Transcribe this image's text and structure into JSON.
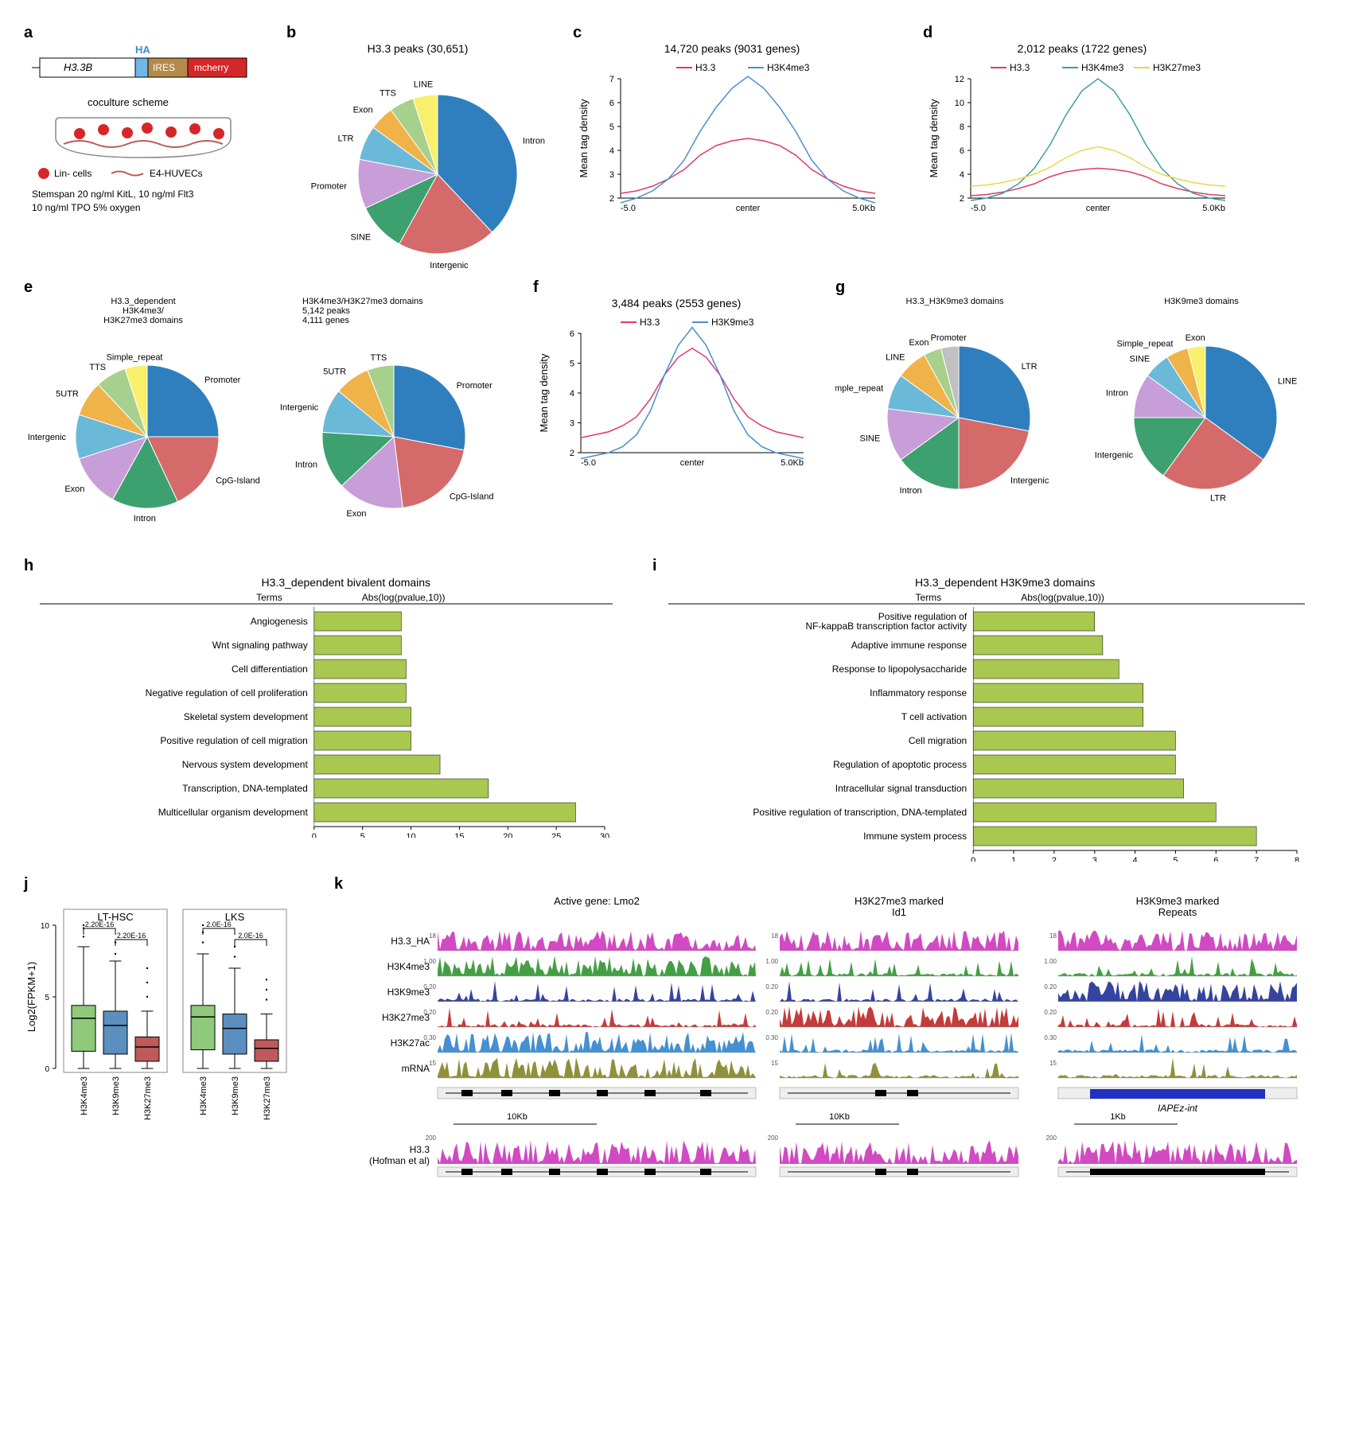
{
  "panelA": {
    "construct": {
      "gene": "H3.3B",
      "tag": "HA",
      "ires": "IRES",
      "reporter": "mcherry"
    },
    "scheme_label": "coculture scheme",
    "lin_label": "Lin- cells",
    "ec_label": "E4-HUVECs",
    "media_line1": "Stemspan   20 ng/ml KitL, 10 ng/ml Flt3",
    "media_line2": "10 ng/ml TPO 5% oxygen",
    "colors": {
      "gene": "#ffffff",
      "ha": "#6fb7e8",
      "ires": "#b38a4a",
      "reporter": "#d62728"
    }
  },
  "panelB": {
    "title": "H3.3 peaks (30,651)",
    "slices": [
      {
        "label": "Intron",
        "value": 38,
        "color": "#2f7fbf"
      },
      {
        "label": "Intergenic",
        "value": 20,
        "color": "#d46a6a"
      },
      {
        "label": "SINE",
        "value": 10,
        "color": "#3da06f"
      },
      {
        "label": "Promoter",
        "value": 10,
        "color": "#c89ed8"
      },
      {
        "label": "LTR",
        "value": 7,
        "color": "#6bb9d8"
      },
      {
        "label": "Exon",
        "value": 5,
        "color": "#f0b34a"
      },
      {
        "label": "TTS",
        "value": 5,
        "color": "#a8d08d"
      },
      {
        "label": "LINE",
        "value": 5,
        "color": "#f8f06a"
      }
    ]
  },
  "panelC": {
    "title": "14,720 peaks (9031 genes)",
    "series": [
      {
        "name": "H3.3",
        "color": "#e03a6a"
      },
      {
        "name": "H3K4me3",
        "color": "#4a8fd0"
      }
    ],
    "ylabel": "Mean tag density",
    "ylim": [
      2,
      7
    ],
    "yticks": [
      2,
      3,
      4,
      5,
      6,
      7
    ],
    "xlims": [
      "-5.0",
      "center",
      "5.0Kb"
    ],
    "curves": {
      "H3.3": [
        2.2,
        2.3,
        2.5,
        2.8,
        3.2,
        3.8,
        4.2,
        4.4,
        4.5,
        4.4,
        4.2,
        3.8,
        3.2,
        2.8,
        2.5,
        2.3,
        2.2
      ],
      "H3K4me3": [
        1.8,
        2.0,
        2.3,
        2.8,
        3.6,
        4.8,
        5.8,
        6.6,
        7.1,
        6.6,
        5.8,
        4.8,
        3.6,
        2.8,
        2.3,
        2.0,
        1.8
      ]
    }
  },
  "panelD": {
    "title": "2,012 peaks (1722 genes)",
    "series": [
      {
        "name": "H3.3",
        "color": "#e03a6a"
      },
      {
        "name": "H3K4me3",
        "color": "#3aa0a0"
      },
      {
        "name": "H3K27me3",
        "color": "#e8d84a"
      }
    ],
    "ylabel": "Mean tag density",
    "ylim": [
      2,
      12
    ],
    "yticks": [
      2,
      4,
      6,
      8,
      10,
      12
    ],
    "xlims": [
      "-5.0",
      "center",
      "5.0Kb"
    ],
    "curves": {
      "H3.3": [
        2.2,
        2.3,
        2.5,
        2.8,
        3.2,
        3.8,
        4.2,
        4.4,
        4.5,
        4.4,
        4.2,
        3.8,
        3.2,
        2.8,
        2.5,
        2.3,
        2.2
      ],
      "H3K4me3": [
        1.8,
        2.0,
        2.4,
        3.2,
        4.5,
        6.5,
        9.0,
        11.0,
        12.0,
        11.0,
        9.0,
        6.5,
        4.5,
        3.2,
        2.4,
        2.0,
        1.8
      ],
      "H3K27me3": [
        3.0,
        3.1,
        3.3,
        3.6,
        4.0,
        4.6,
        5.4,
        6.0,
        6.3,
        6.0,
        5.4,
        4.6,
        4.0,
        3.6,
        3.3,
        3.1,
        3.0
      ]
    }
  },
  "panelE": {
    "left_title1": "H3.3_dependent",
    "left_title2": "H3K4me3/",
    "left_title3": "H3K27me3 domains",
    "right_title1": "H3K4me3/H3K27me3 domains",
    "right_title2": "5,142 peaks",
    "right_title3": "4,111 genes",
    "slices_left": [
      {
        "label": "Promoter",
        "value": 25,
        "color": "#2f7fbf"
      },
      {
        "label": "CpG-Island",
        "value": 18,
        "color": "#d46a6a"
      },
      {
        "label": "Intron",
        "value": 15,
        "color": "#3da06f"
      },
      {
        "label": "Exon",
        "value": 12,
        "color": "#c89ed8"
      },
      {
        "label": "Intergenic",
        "value": 10,
        "color": "#6bb9d8"
      },
      {
        "label": "5UTR",
        "value": 8,
        "color": "#f0b34a"
      },
      {
        "label": "TTS",
        "value": 7,
        "color": "#a8d08d"
      },
      {
        "label": "Simple_repeat",
        "value": 5,
        "color": "#f8f06a"
      }
    ],
    "slices_right": [
      {
        "label": "Promoter",
        "value": 28,
        "color": "#2f7fbf"
      },
      {
        "label": "CpG-Island",
        "value": 20,
        "color": "#d46a6a"
      },
      {
        "label": "Exon",
        "value": 15,
        "color": "#c89ed8"
      },
      {
        "label": "Intron",
        "value": 13,
        "color": "#3da06f"
      },
      {
        "label": "Intergenic",
        "value": 10,
        "color": "#6bb9d8"
      },
      {
        "label": "5UTR",
        "value": 8,
        "color": "#f0b34a"
      },
      {
        "label": "TTS",
        "value": 6,
        "color": "#a8d08d"
      }
    ]
  },
  "panelF": {
    "title": "3,484 peaks (2553 genes)",
    "series": [
      {
        "name": "H3.3",
        "color": "#e03a6a"
      },
      {
        "name": "H3K9me3",
        "color": "#4a8fd0"
      }
    ],
    "ylabel": "Mean tag density",
    "ylim": [
      2,
      6
    ],
    "yticks": [
      2,
      3,
      4,
      5,
      6
    ],
    "xlims": [
      "-5.0",
      "center",
      "5.0Kb"
    ],
    "curves": {
      "H3.3": [
        2.5,
        2.6,
        2.7,
        2.9,
        3.2,
        3.8,
        4.6,
        5.2,
        5.5,
        5.2,
        4.6,
        3.8,
        3.2,
        2.9,
        2.7,
        2.6,
        2.5
      ],
      "H3K9me3": [
        1.8,
        1.9,
        2.0,
        2.2,
        2.6,
        3.4,
        4.6,
        5.6,
        6.2,
        5.6,
        4.6,
        3.4,
        2.6,
        2.2,
        2.0,
        1.9,
        1.8
      ]
    }
  },
  "panelG": {
    "left_title": "H3.3_H3K9me3 domains",
    "right_title": "H3K9me3 domains",
    "slices_left": [
      {
        "label": "LTR",
        "value": 28,
        "color": "#2f7fbf"
      },
      {
        "label": "Intergenic",
        "value": 22,
        "color": "#d46a6a"
      },
      {
        "label": "Intron",
        "value": 15,
        "color": "#3da06f"
      },
      {
        "label": "SINE",
        "value": 12,
        "color": "#c89ed8"
      },
      {
        "label": "Simple_repeat",
        "value": 8,
        "color": "#6bb9d8"
      },
      {
        "label": "LINE",
        "value": 7,
        "color": "#f0b34a"
      },
      {
        "label": "Exon",
        "value": 4,
        "color": "#a8d08d"
      },
      {
        "label": "Promoter",
        "value": 4,
        "color": "#c0c0c0"
      }
    ],
    "slices_right": [
      {
        "label": "LINE",
        "value": 35,
        "color": "#2f7fbf"
      },
      {
        "label": "LTR",
        "value": 25,
        "color": "#d46a6a"
      },
      {
        "label": "Intergenic",
        "value": 15,
        "color": "#3da06f"
      },
      {
        "label": "Intron",
        "value": 10,
        "color": "#c89ed8"
      },
      {
        "label": "SINE",
        "value": 6,
        "color": "#6bb9d8"
      },
      {
        "label": "Simple_repeat",
        "value": 5,
        "color": "#f0b34a"
      },
      {
        "label": "Exon",
        "value": 4,
        "color": "#f8f06a"
      }
    ]
  },
  "panelH": {
    "title": "H3.3_dependent  bivalent domains",
    "header1": "Terms",
    "header2": "Abs(log(pvalue,10))",
    "xlim": [
      0,
      30
    ],
    "xtick_step": 5,
    "bar_color": "#a8c850",
    "bars": [
      {
        "term": "Angiogenesis",
        "value": 9
      },
      {
        "term": "Wnt signaling pathway",
        "value": 9
      },
      {
        "term": "Cell differentiation",
        "value": 9.5
      },
      {
        "term": "Negative regulation of cell proliferation",
        "value": 9.5
      },
      {
        "term": "Skeletal system development",
        "value": 10
      },
      {
        "term": "Positive regulation of cell migration",
        "value": 10
      },
      {
        "term": "Nervous system development",
        "value": 13
      },
      {
        "term": "Transcription, DNA-templated",
        "value": 18
      },
      {
        "term": "Multicellular organism development",
        "value": 27
      }
    ]
  },
  "panelI": {
    "title": "H3.3_dependent  H3K9me3 domains",
    "header1": "Terms",
    "header2": "Abs(log(pvalue,10))",
    "xlim": [
      0,
      8
    ],
    "xtick_step": 1,
    "bar_color": "#a8c850",
    "bars": [
      {
        "term": "Positive regulation of\nNF-kappaB transcription factor activity",
        "value": 3.0
      },
      {
        "term": "Adaptive immune response",
        "value": 3.2
      },
      {
        "term": "Response to lipopolysaccharide",
        "value": 3.6
      },
      {
        "term": "Inflammatory response",
        "value": 4.2
      },
      {
        "term": "T cell activation",
        "value": 4.2
      },
      {
        "term": "Cell migration",
        "value": 5.0
      },
      {
        "term": "Regulation of apoptotic process",
        "value": 5.0
      },
      {
        "term": "Intracellular signal transduction",
        "value": 5.2
      },
      {
        "term": "Positive regulation of transcription, DNA-templated",
        "value": 6.0
      },
      {
        "term": "Immune system process",
        "value": 7.0
      }
    ]
  },
  "panelJ": {
    "groups": [
      "LT-HSC",
      "LKS"
    ],
    "ylabel": "Log2(FPKM+1)",
    "ylim": [
      0,
      10
    ],
    "categories": [
      "H3K4me3",
      "H3K9me3",
      "H3K27me3"
    ],
    "colors": [
      "#8fc97a",
      "#5a8fc0",
      "#c05a5a"
    ],
    "pvals": [
      "2.20E-16",
      "2.20E-16",
      "2.0E-16",
      "2.0E-16"
    ],
    "boxes_lt": [
      {
        "q1": 1.2,
        "med": 3.5,
        "q3": 4.4,
        "lo": 0,
        "hi": 8.5,
        "outliers": [
          9.2,
          9.8,
          10.0
        ]
      },
      {
        "q1": 1.0,
        "med": 3.0,
        "q3": 4.0,
        "lo": 0,
        "hi": 7.5,
        "outliers": [
          8.0,
          8.8
        ]
      },
      {
        "q1": 0.5,
        "med": 1.5,
        "q3": 2.2,
        "lo": 0,
        "hi": 4.0,
        "outliers": [
          5.0,
          6.0,
          7.0
        ]
      }
    ],
    "boxes_lks": [
      {
        "q1": 1.3,
        "med": 3.6,
        "q3": 4.4,
        "lo": 0,
        "hi": 8.0,
        "outliers": [
          8.8,
          9.5,
          10.0
        ]
      },
      {
        "q1": 1.0,
        "med": 2.8,
        "q3": 3.8,
        "lo": 0,
        "hi": 7.0,
        "outliers": [
          7.8,
          8.5
        ]
      },
      {
        "q1": 0.5,
        "med": 1.4,
        "q3": 2.0,
        "lo": 0,
        "hi": 3.8,
        "outliers": [
          4.8,
          5.5,
          6.2
        ]
      }
    ]
  },
  "panelK": {
    "titles": [
      "Active gene: Lmo2",
      "H3K27me3 marked\nId1",
      "H3K9me3 marked\nRepeats"
    ],
    "tracks": [
      {
        "name": "H3.3_HA",
        "color": "#d040c0",
        "scale": "18"
      },
      {
        "name": "H3K4me3",
        "color": "#3a9a3a",
        "scale": "1.00"
      },
      {
        "name": "H3K9me3",
        "color": "#2a3a9a",
        "scale": "0.20"
      },
      {
        "name": "H3K27me3",
        "color": "#c03030",
        "scale": "0.20"
      },
      {
        "name": "H3K27ac",
        "color": "#3a8ad0",
        "scale": "0.30"
      },
      {
        "name": "mRNA",
        "color": "#8a8a30",
        "scale": "15"
      }
    ],
    "repeat_label": "IAPEz-int",
    "bottom_track": "H3.3\n(Hofman et al)",
    "bottom_scales": [
      "10Kb",
      "10Kb",
      "1Kb"
    ],
    "bottom_yscale": "200",
    "bottom_color": "#d040c0"
  }
}
